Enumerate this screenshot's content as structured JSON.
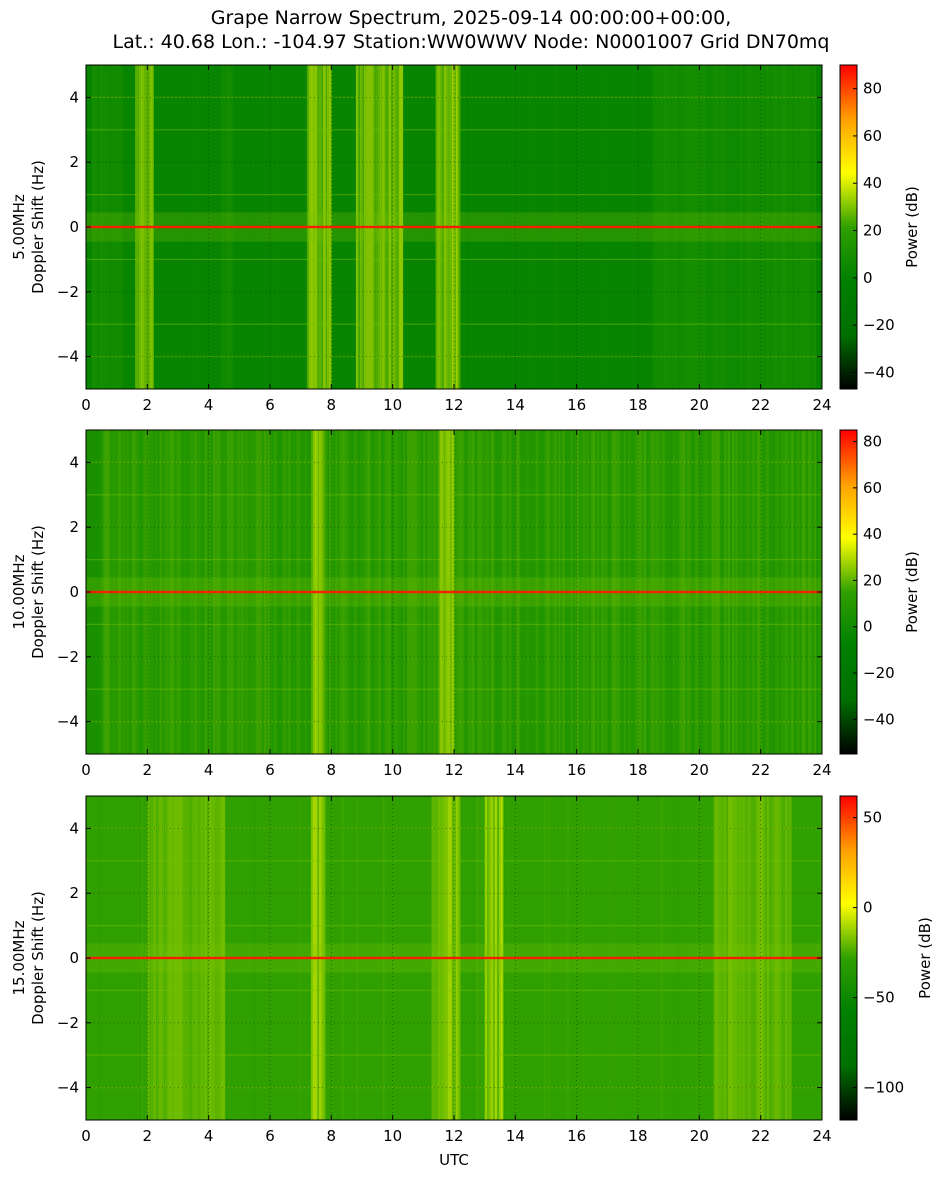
{
  "title_line1": "Grape Narrow Spectrum, 2025-09-14 00:00:00+00:00,",
  "title_line2": "Lat.: 40.68 Lon.: -104.97 Station:WW0WWV Node: N0001007 Grid DN70mq",
  "colors": {
    "colormap": [
      "#000000",
      "#007000",
      "#008000",
      "#30a000",
      "#ffff00",
      "#ffa000",
      "#ff0000"
    ],
    "carrier_line": "#ff2000"
  },
  "chart_data": [
    {
      "type": "heatmap",
      "frequency_label": "5.00MHz",
      "ylabel": "Doppler Shift (Hz)",
      "xlabel": "",
      "xlim": [
        0,
        24
      ],
      "ylim": [
        -5,
        5
      ],
      "xticks": [
        "0",
        "2",
        "4",
        "6",
        "8",
        "10",
        "12",
        "14",
        "16",
        "18",
        "20",
        "22",
        "24"
      ],
      "yticks": [
        "4",
        "2",
        "0",
        "−2",
        "−4"
      ],
      "ytick_values": [
        4,
        2,
        0,
        -2,
        -4
      ],
      "colorbar": {
        "label": "Power (dB)",
        "range": [
          -47,
          90
        ],
        "ticks": [
          "80",
          "60",
          "40",
          "20",
          "0",
          "−20",
          "−40"
        ],
        "tick_values": [
          80,
          60,
          40,
          20,
          0,
          -20,
          -40
        ]
      },
      "base_level": 0.36,
      "carrier_hz": 0,
      "bright_bands_utc": [
        [
          1.6,
          2.2
        ],
        [
          7.2,
          8.0
        ],
        [
          8.8,
          10.3
        ],
        [
          11.4,
          12.2
        ]
      ],
      "faint_bands_utc": [
        [
          0.2,
          1.2
        ],
        [
          4.4,
          4.8
        ],
        [
          18.5,
          23.8
        ]
      ]
    },
    {
      "type": "heatmap",
      "frequency_label": "10.00MHz",
      "ylabel": "Doppler Shift (Hz)",
      "xlabel": "",
      "xlim": [
        0,
        24
      ],
      "ylim": [
        -5,
        5
      ],
      "xticks": [
        "0",
        "2",
        "4",
        "6",
        "8",
        "10",
        "12",
        "14",
        "16",
        "18",
        "20",
        "22",
        "24"
      ],
      "yticks": [
        "4",
        "2",
        "0",
        "−2",
        "−4"
      ],
      "ytick_values": [
        4,
        2,
        0,
        -2,
        -4
      ],
      "colorbar": {
        "label": "Power (dB)",
        "range": [
          -55,
          85
        ],
        "ticks": [
          "80",
          "60",
          "40",
          "20",
          "0",
          "−20",
          "−40"
        ],
        "tick_values": [
          80,
          60,
          40,
          20,
          0,
          -20,
          -40
        ]
      },
      "base_level": 0.42,
      "carrier_hz": 0,
      "bright_bands_utc": [
        [
          7.3,
          7.8
        ],
        [
          11.5,
          12.0
        ]
      ],
      "faint_bands_utc": [
        [
          0.5,
          24.0
        ]
      ]
    },
    {
      "type": "heatmap",
      "frequency_label": "15.00MHz",
      "ylabel": "Doppler Shift (Hz)",
      "xlabel": "UTC",
      "xlim": [
        0,
        24
      ],
      "ylim": [
        -5,
        5
      ],
      "xticks": [
        "0",
        "2",
        "4",
        "6",
        "8",
        "10",
        "12",
        "14",
        "16",
        "18",
        "20",
        "22",
        "24"
      ],
      "yticks": [
        "4",
        "2",
        "0",
        "−2",
        "−4"
      ],
      "ytick_values": [
        4,
        2,
        0,
        -2,
        -4
      ],
      "colorbar": {
        "label": "Power (dB)",
        "range": [
          -118,
          62
        ],
        "ticks": [
          "50",
          "0",
          "−50",
          "−100"
        ],
        "tick_values": [
          50,
          0,
          -50,
          -100
        ]
      },
      "base_level": 0.5,
      "carrier_hz": 0,
      "bright_bands_utc": [
        [
          7.3,
          7.8
        ],
        [
          11.3,
          12.2
        ],
        [
          13.0,
          13.6
        ]
      ],
      "faint_bands_utc": [
        [
          2.0,
          4.5
        ],
        [
          20.5,
          23.0
        ]
      ]
    }
  ]
}
